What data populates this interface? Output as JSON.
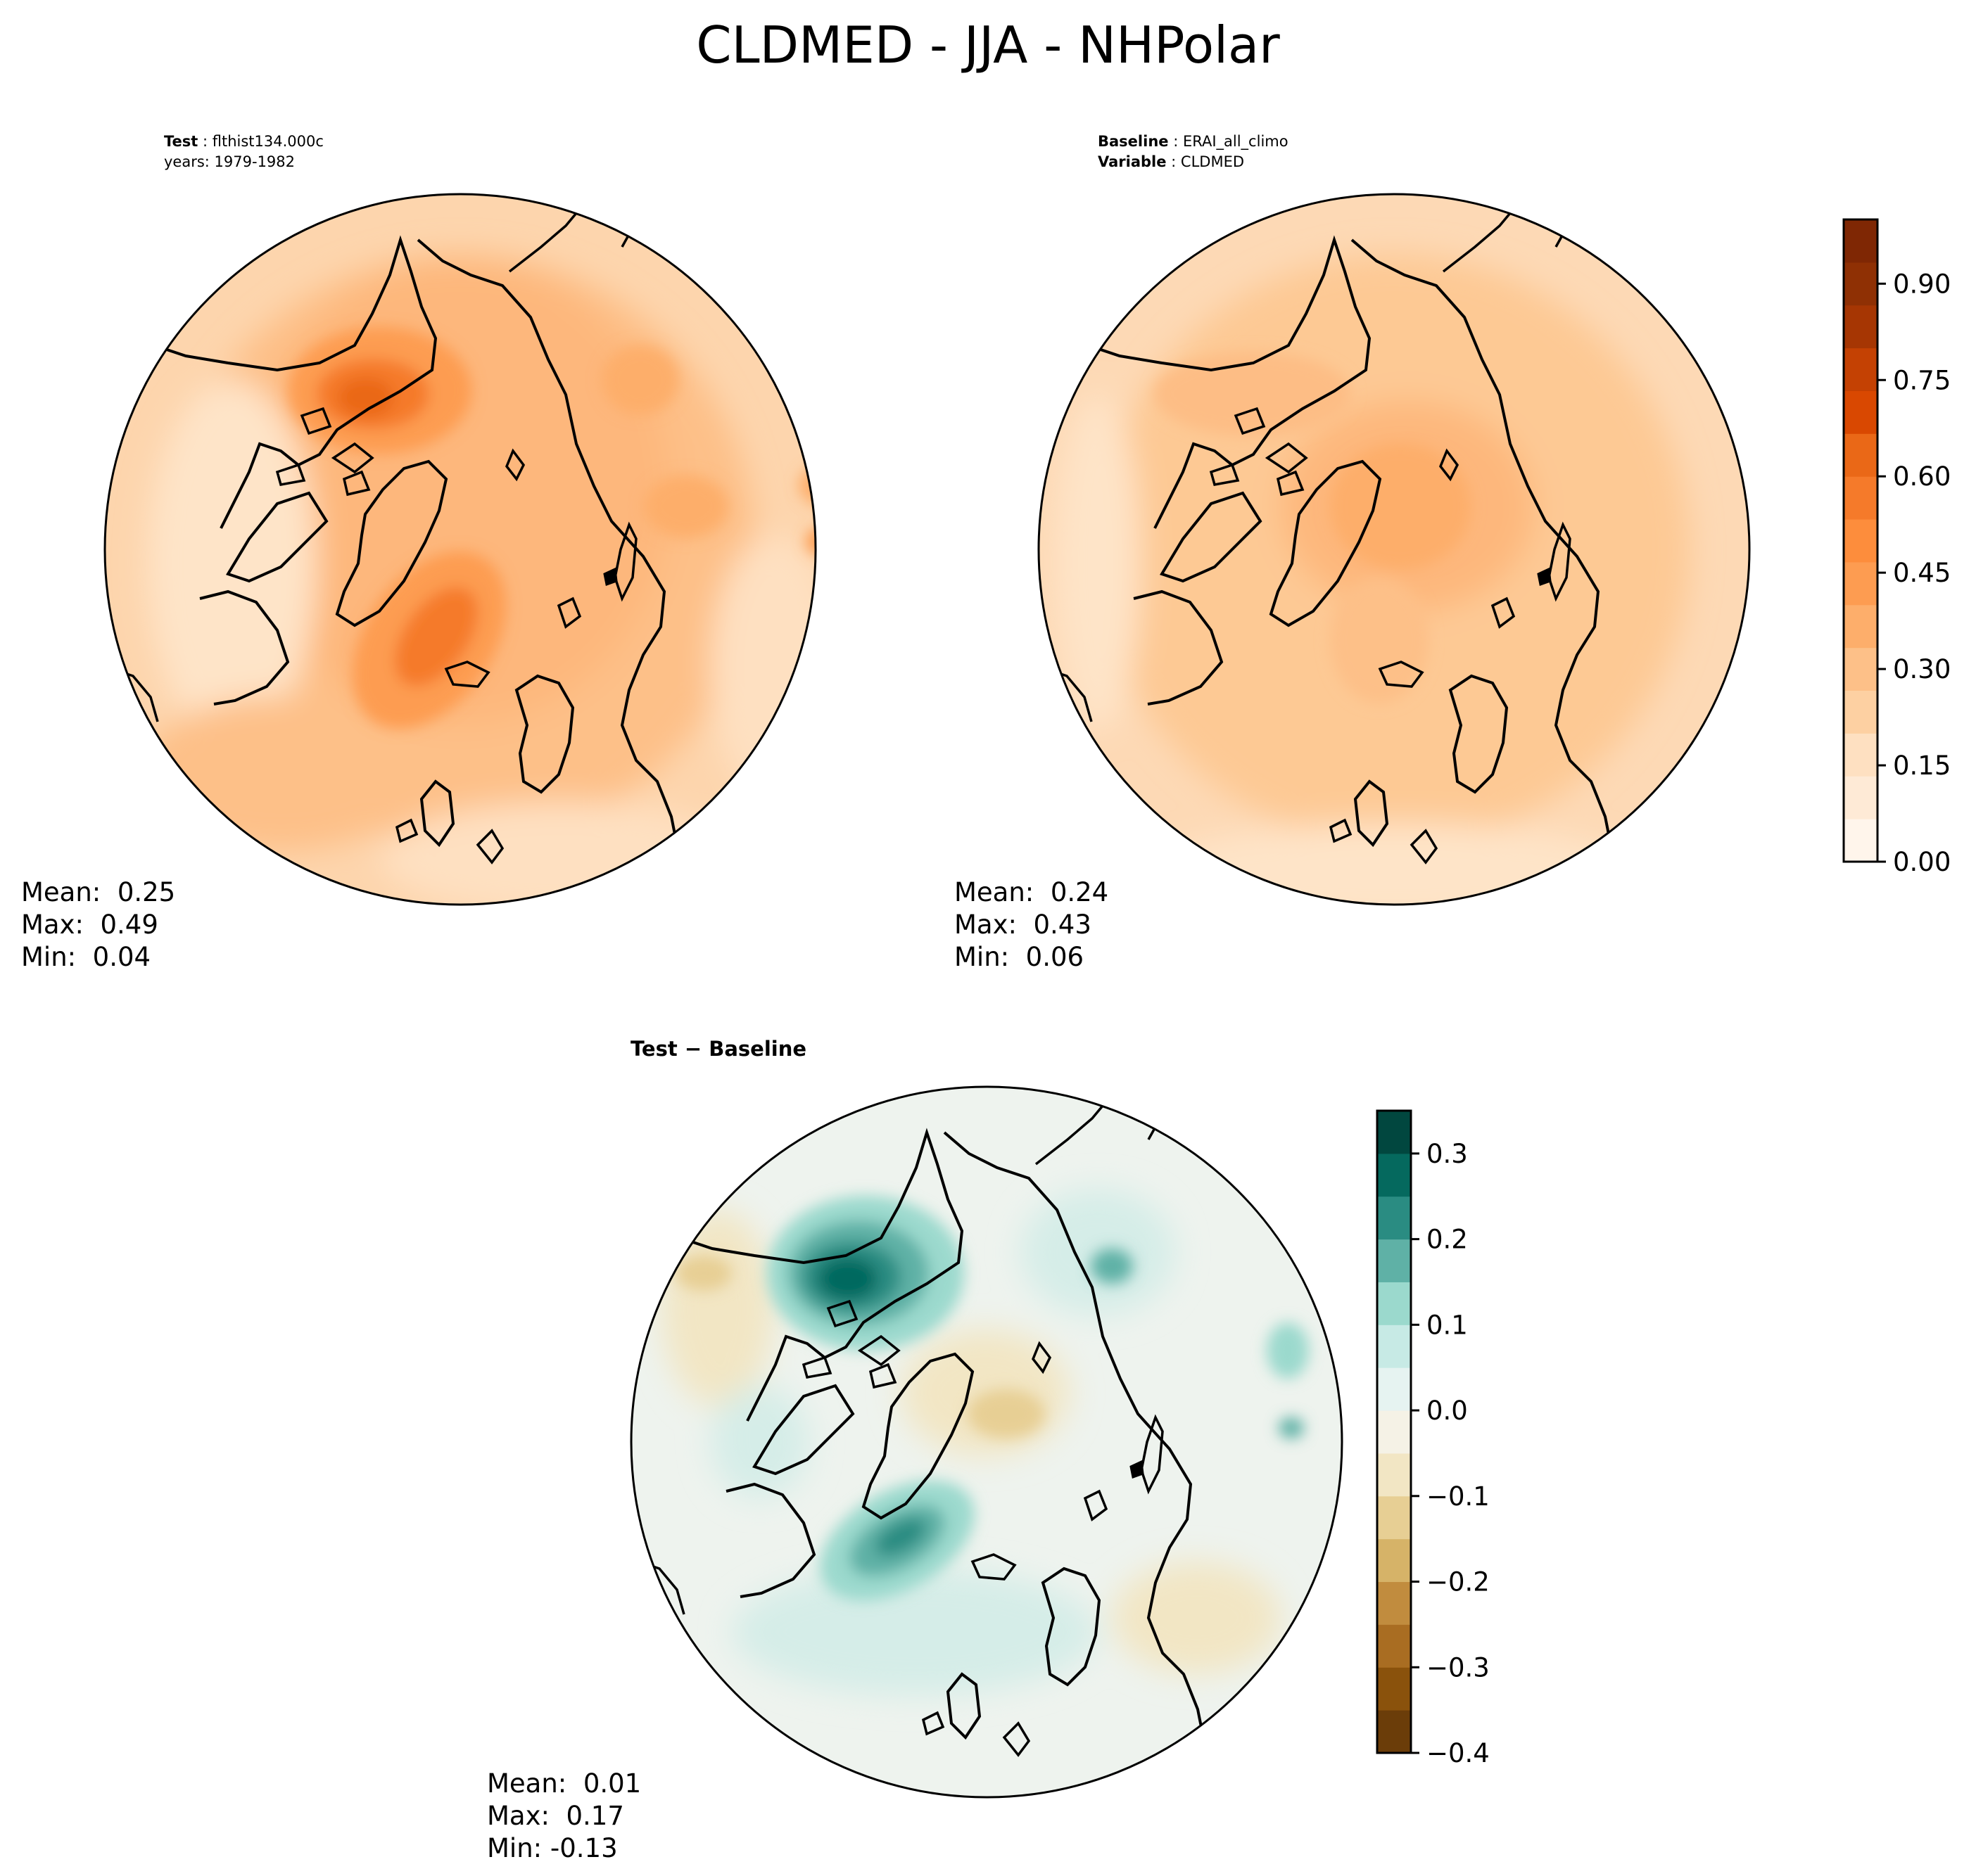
{
  "title": "CLDMED - JJA - NHPolar",
  "panels": {
    "test": {
      "header_label": "Test",
      "header_value": "flthist134.000c",
      "header_line2": "years: 1979-1982",
      "mean_label": "Mean:",
      "mean": "0.25",
      "max_label": "Max:",
      "max": "0.49",
      "min_label": "Min:",
      "min": "0.04"
    },
    "baseline": {
      "header_label": "Baseline",
      "header_value": "ERAI_all_climo",
      "variable_label": "Variable",
      "variable_value": "CLDMED",
      "mean_label": "Mean:",
      "mean": "0.24",
      "max_label": "Max:",
      "max": "0.43",
      "min_label": "Min:",
      "min": "0.06"
    },
    "diff": {
      "title": "Test − Baseline",
      "mean_label": "Mean:",
      "mean": "0.01",
      "max_label": "Max:",
      "max": "0.17",
      "min_label": "Min:",
      "min": "-0.13"
    }
  },
  "colorbars": {
    "main": {
      "colors": [
        "#fff5eb",
        "#feead6",
        "#fee0c1",
        "#fdd0a2",
        "#fdc088",
        "#fdae6b",
        "#fd9c51",
        "#fd8d3c",
        "#f57a2a",
        "#ea6817",
        "#d94801",
        "#c44103",
        "#a63603",
        "#8f3004",
        "#7f2704"
      ],
      "ticks": [
        "0.00",
        "0.15",
        "0.30",
        "0.45",
        "0.60",
        "0.75",
        "0.90"
      ],
      "range": [
        0,
        1.0
      ]
    },
    "diff": {
      "colors": [
        "#6b3d09",
        "#8a520c",
        "#a96d22",
        "#c18c3e",
        "#d6b368",
        "#e7cf94",
        "#f2e6c4",
        "#f5f2e6",
        "#e6f3f1",
        "#c7eae5",
        "#9bd9cd",
        "#5fb1a6",
        "#2a8c82",
        "#05695e",
        "#01473f"
      ],
      "ticks": [
        "−0.4",
        "−0.3",
        "−0.2",
        "−0.1",
        "0.0",
        "0.1",
        "0.2",
        "0.3"
      ],
      "range": [
        -0.4,
        0.35
      ]
    }
  }
}
